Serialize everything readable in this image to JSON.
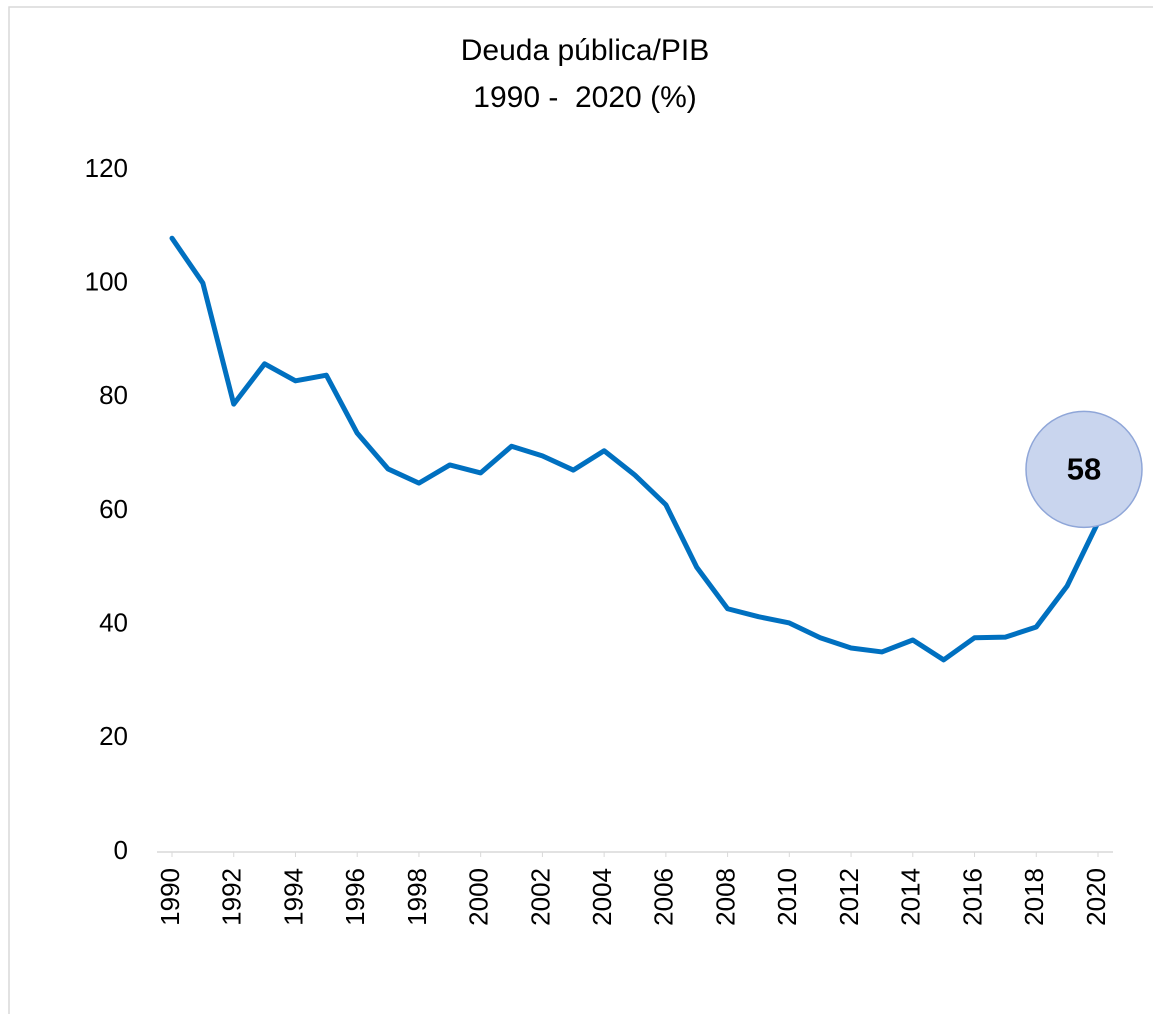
{
  "chart_data": {
    "type": "line",
    "title": "Deuda pública/PIB",
    "subtitle": "1990 -  2020 (%)",
    "x": [
      1990,
      1991,
      1992,
      1993,
      1994,
      1995,
      1996,
      1997,
      1998,
      1999,
      2000,
      2001,
      2002,
      2003,
      2004,
      2005,
      2006,
      2007,
      2008,
      2009,
      2010,
      2011,
      2012,
      2013,
      2014,
      2015,
      2016,
      2017,
      2018,
      2019,
      2020
    ],
    "values": [
      108.0,
      100.1,
      78.8,
      85.9,
      82.9,
      83.9,
      73.7,
      67.4,
      64.9,
      68.1,
      66.7,
      71.4,
      69.7,
      67.2,
      70.6,
      66.3,
      61.1,
      50.1,
      42.8,
      41.4,
      40.3,
      37.7,
      35.9,
      35.2,
      37.3,
      33.8,
      37.7,
      37.8,
      39.6,
      46.8,
      58
    ],
    "color": "#0070c0",
    "xlim": [
      1990,
      2020
    ],
    "xticks": [
      1990,
      1992,
      1994,
      1996,
      1998,
      2000,
      2002,
      2004,
      2006,
      2008,
      2010,
      2012,
      2014,
      2016,
      2018,
      2020
    ],
    "ylim": [
      0,
      120
    ],
    "yticks": [
      0,
      20,
      40,
      60,
      80,
      100,
      120
    ],
    "grid": false,
    "label_last": true
  }
}
